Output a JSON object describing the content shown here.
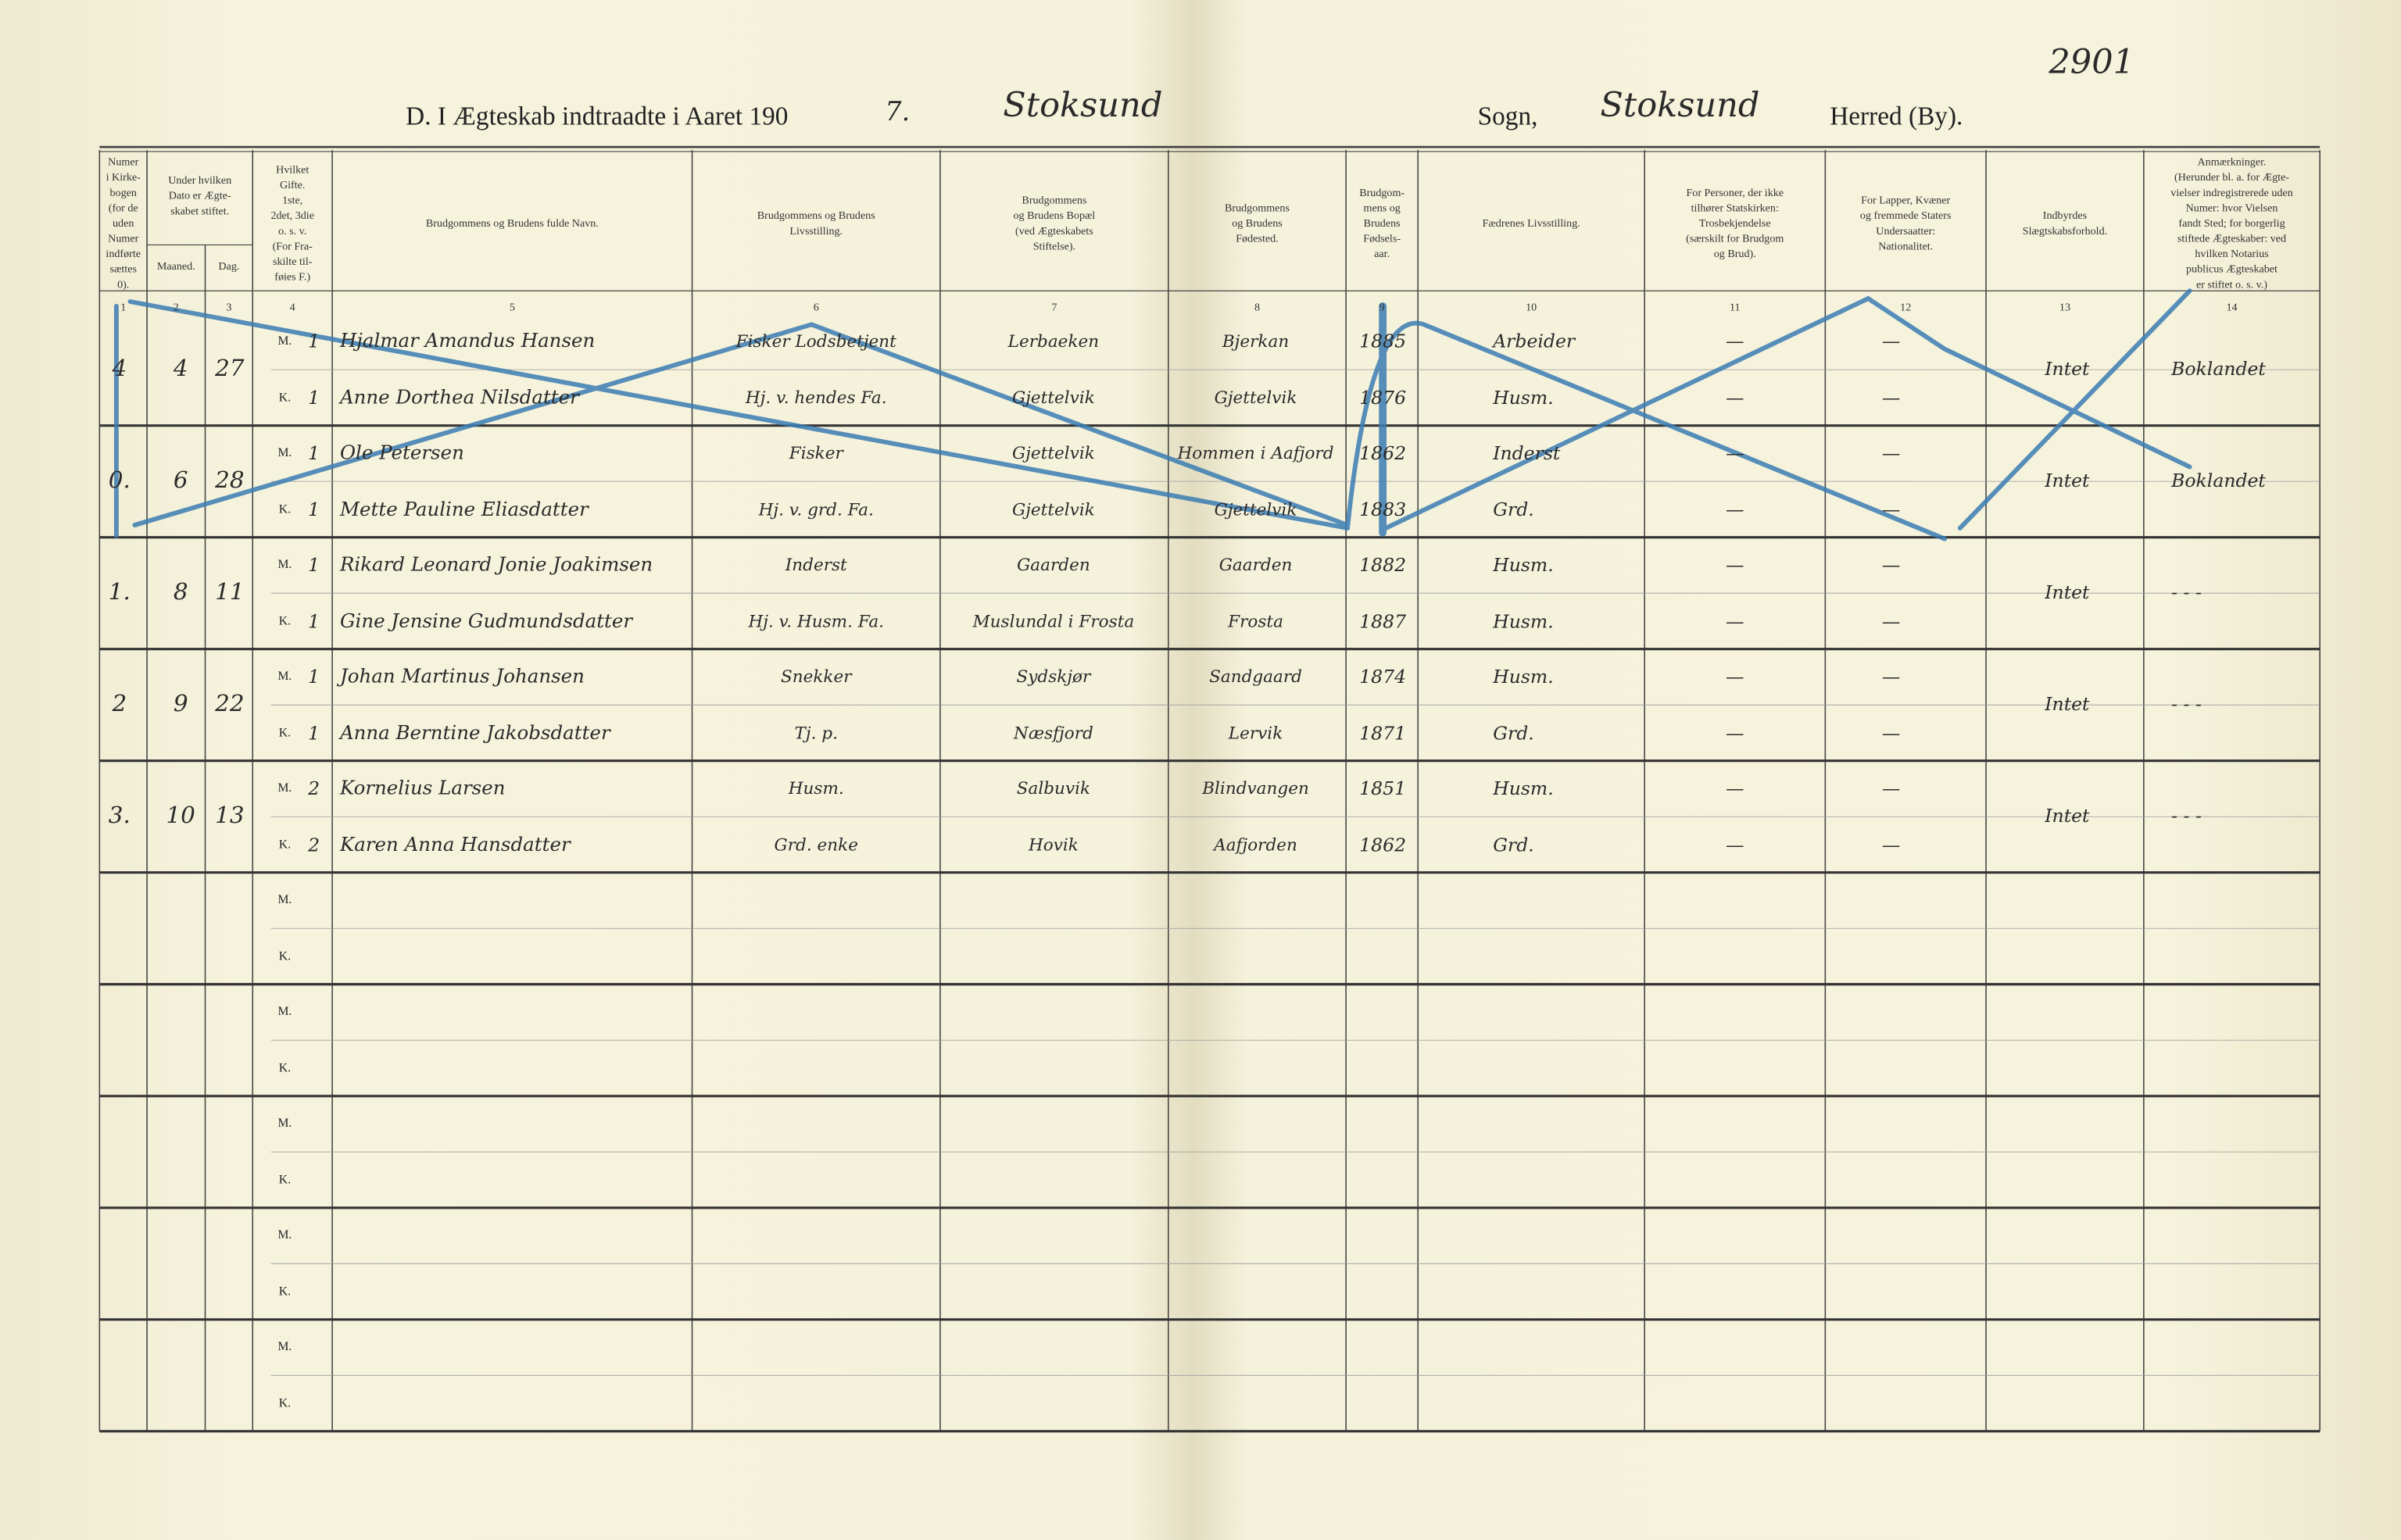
{
  "header": {
    "title": "D.  I Ægteskab indtraadte i Aaret 190",
    "year_suffix": "7.",
    "parish_handwritten": "Stoksund",
    "sogn_label": "Sogn,",
    "herred_handwritten": "Stoksund",
    "herred_label": "Herred (By).",
    "page_number": "2901"
  },
  "columns": [
    {
      "number": "1",
      "lines": [
        "Numer",
        "i Kirke-",
        "bogen",
        "(for de",
        "uden",
        "Numer",
        "indførte",
        "sættes",
        "0)."
      ]
    },
    {
      "number": "",
      "lines": [
        "Under hvilken",
        "Dato er Ægte-",
        "skabet stiftet."
      ]
    },
    {
      "number": "4",
      "lines": [
        "Hvilket",
        "Gifte.",
        "1ste,",
        "2det, 3die",
        "o. s. v.",
        "(For Fra-",
        "skilte til-",
        "føies F.)"
      ]
    },
    {
      "number": "5",
      "lines": [
        "Brudgommens og Brudens fulde Navn."
      ]
    },
    {
      "number": "6",
      "lines": [
        "Brudgommens og Brudens",
        "Livsstilling."
      ]
    },
    {
      "number": "7",
      "lines": [
        "Brudgommens",
        "og Brudens Bopæl",
        "(ved Ægteskabets",
        "Stiftelse)."
      ]
    },
    {
      "number": "8",
      "lines": [
        "Brudgommens",
        "og Brudens",
        "Fødested."
      ]
    },
    {
      "number": "9",
      "lines": [
        "Brudgom-",
        "mens og",
        "Brudens",
        "Fødsels-",
        "aar."
      ]
    },
    {
      "number": "10",
      "lines": [
        "Fædrenes Livsstilling."
      ]
    },
    {
      "number": "11",
      "lines": [
        "For Personer, der ikke",
        "tilhører Statskirken:",
        "Trosbekjendelse",
        "(særskilt for Brudgom",
        "og Brud)."
      ]
    },
    {
      "number": "12",
      "lines": [
        "For Lapper, Kvæner",
        "og fremmede Staters",
        "Undersaatter:",
        "Nationalitet."
      ]
    },
    {
      "number": "13",
      "lines": [
        "Indbyrdes",
        "Slægtskabsforhold."
      ]
    },
    {
      "number": "14",
      "lines": [
        "Anmærkninger.",
        "(Herunder bl. a. for Ægte-",
        "vielser indregistrerede uden",
        "Numer: hvor Vielsen",
        "fandt Sted; for borgerlig",
        "stiftede Ægteskaber: ved",
        "hvilken Notarius",
        "publicus Ægteskabet",
        "er stiftet o. s. v.)"
      ]
    }
  ],
  "date_subcolumns": [
    {
      "label": "Maaned.",
      "number": "2"
    },
    {
      "label": "Dag.",
      "number": "3"
    }
  ],
  "row_labels": [
    "M.",
    "K."
  ],
  "records": [
    {
      "number": "4",
      "month": "4",
      "day": "27",
      "relation": "Intet",
      "remarks": "Boklandet",
      "groom": {
        "marriage": "1",
        "name": "Hjalmar Amandus Hansen",
        "occupation": "Fisker Lodsbetjent",
        "residence": "Lerbaeken",
        "birthplace": "Bjerkan",
        "birth_year": "1885",
        "father": "Arbeider",
        "faith": "—",
        "nationality": "—"
      },
      "bride": {
        "marriage": "1",
        "name": "Anne Dorthea Nilsdatter",
        "occupation": "Hj. v. hendes Fa.",
        "residence": "Gjettelvik",
        "birthplace": "Gjettelvik",
        "birth_year": "1876",
        "father": "Husm.",
        "faith": "—",
        "nationality": "—"
      }
    },
    {
      "number": "0.",
      "month": "6",
      "day": "28",
      "relation": "Intet",
      "remarks": "Boklandet",
      "groom": {
        "marriage": "1",
        "name": "Ole Petersen",
        "occupation": "Fisker",
        "residence": "Gjettelvik",
        "birthplace": "Hommen i Aafjord",
        "birth_year": "1862",
        "father": "Inderst",
        "faith": "—",
        "nationality": "—"
      },
      "bride": {
        "marriage": "1",
        "name": "Mette Pauline Eliasdatter",
        "occupation": "Hj. v. grd. Fa.",
        "residence": "Gjettelvik",
        "birthplace": "Gjettelvik",
        "birth_year": "1883",
        "father": "Grd.",
        "faith": "—",
        "nationality": "—"
      }
    },
    {
      "number": "1.",
      "month": "8",
      "day": "11",
      "relation": "Intet",
      "remarks": "- - -",
      "groom": {
        "marriage": "1",
        "name": "Rikard Leonard Jonie Joakimsen",
        "occupation": "Inderst",
        "residence": "Gaarden",
        "birthplace": "Gaarden",
        "birth_year": "1882",
        "father": "Husm.",
        "faith": "—",
        "nationality": "—"
      },
      "bride": {
        "marriage": "1",
        "name": "Gine Jensine Gudmundsdatter",
        "occupation": "Hj. v. Husm. Fa.",
        "residence": "Muslundal i Frosta",
        "birthplace": "Frosta",
        "birth_year": "1887",
        "father": "Husm.",
        "faith": "—",
        "nationality": "—"
      }
    },
    {
      "number": "2",
      "month": "9",
      "day": "22",
      "relation": "Intet",
      "remarks": "- - -",
      "groom": {
        "marriage": "1",
        "name": "Johan Martinus Johansen",
        "occupation": "Snekker",
        "residence": "Sydskjør",
        "birthplace": "Sandgaard",
        "birth_year": "1874",
        "father": "Husm.",
        "faith": "—",
        "nationality": "—"
      },
      "bride": {
        "marriage": "1",
        "name": "Anna Berntine Jakobsdatter",
        "occupation": "Tj. p.",
        "residence": "Næsfjord",
        "birthplace": "Lervik",
        "birth_year": "1871",
        "father": "Grd.",
        "faith": "—",
        "nationality": "—"
      }
    },
    {
      "number": "3.",
      "month": "10",
      "day": "13",
      "relation": "Intet",
      "remarks": "- - -",
      "groom": {
        "marriage": "2",
        "name": "Kornelius Larsen",
        "occupation": "Husm.",
        "residence": "Salbuvik",
        "birthplace": "Blindvangen",
        "birth_year": "1851",
        "father": "Husm.",
        "faith": "—",
        "nationality": "—"
      },
      "bride": {
        "marriage": "2",
        "name": "Karen Anna Hansdatter",
        "occupation": "Grd. enke",
        "residence": "Hovik",
        "birthplace": "Aafjorden",
        "birth_year": "1862",
        "father": "Grd.",
        "faith": "—",
        "nationality": "—"
      }
    }
  ]
}
